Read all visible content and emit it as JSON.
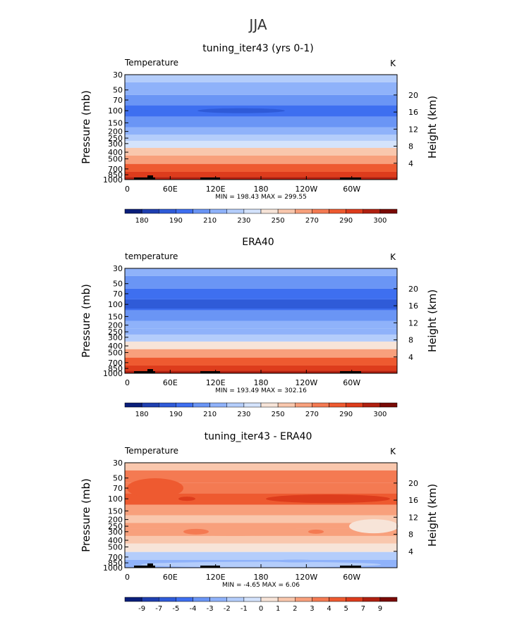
{
  "figure_title": "JJA",
  "chart_data": [
    {
      "type": "heatmap",
      "title": "tuning_iter43 (yrs 0-1)",
      "left_label": "Temperature",
      "units": "K",
      "ylabel": "Pressure (mb)",
      "ylabel_right": "Height (km)",
      "x_ticks": [
        "0",
        "60E",
        "120E",
        "180",
        "120W",
        "60W"
      ],
      "y_ticks": [
        "30",
        "50",
        "70",
        "100",
        "150",
        "200",
        "250",
        "300",
        "400",
        "500",
        "700",
        "850",
        "1000"
      ],
      "y_ticks_right": [
        "20",
        "16",
        "12",
        "8",
        "4"
      ],
      "stats": "MIN = 198.43   MAX = 299.55",
      "levels": [
        30,
        50,
        70,
        100,
        150,
        200,
        250,
        300,
        400,
        500,
        700,
        850,
        1000
      ],
      "values": [
        225,
        220,
        208,
        205,
        214,
        219,
        226,
        234,
        252,
        262,
        275,
        284,
        292
      ],
      "colorbar_labels": [
        "180",
        "190",
        "210",
        "230",
        "250",
        "270",
        "290",
        "300"
      ]
    },
    {
      "type": "heatmap",
      "title": "ERA40",
      "left_label": "temperature",
      "units": "K",
      "ylabel": "Pressure (mb)",
      "ylabel_right": "Height (km)",
      "x_ticks": [
        "0",
        "60E",
        "120E",
        "180",
        "120W",
        "60W"
      ],
      "y_ticks": [
        "30",
        "50",
        "70",
        "100",
        "150",
        "200",
        "250",
        "300",
        "400",
        "500",
        "700",
        "850",
        "1000"
      ],
      "y_ticks_right": [
        "20",
        "16",
        "12",
        "8",
        "4"
      ],
      "stats": "MIN = 193.49   MAX = 302.16",
      "levels": [
        30,
        50,
        70,
        100,
        150,
        200,
        250,
        300,
        400,
        500,
        700,
        850,
        1000
      ],
      "values": [
        222,
        214,
        207,
        200,
        210,
        217,
        222,
        230,
        248,
        260,
        274,
        285,
        294
      ],
      "colorbar_labels": [
        "180",
        "190",
        "210",
        "230",
        "250",
        "270",
        "290",
        "300"
      ]
    },
    {
      "type": "heatmap",
      "title": "tuning_iter43 - ERA40",
      "left_label": "Temperature",
      "units": "K",
      "ylabel": "Pressure (mb)",
      "ylabel_right": "Height (km)",
      "x_ticks": [
        "0",
        "60E",
        "120E",
        "180",
        "120W",
        "60W"
      ],
      "y_ticks": [
        "30",
        "50",
        "70",
        "100",
        "150",
        "200",
        "250",
        "300",
        "400",
        "500",
        "700",
        "850",
        "1000"
      ],
      "y_ticks_right": [
        "20",
        "16",
        "12",
        "8",
        "4"
      ],
      "stats": "MIN =  -4.65   MAX =   6.06",
      "levels": [
        30,
        50,
        70,
        100,
        150,
        200,
        250,
        300,
        400,
        500,
        700,
        850,
        1000
      ],
      "values": [
        2,
        4,
        4,
        5,
        3,
        2,
        3,
        3,
        2,
        1,
        -1,
        -2,
        -2
      ],
      "colorbar_labels": [
        "-9",
        "-7",
        "-5",
        "-4",
        "-3",
        "-2",
        "-1",
        "0",
        "1",
        "2",
        "3",
        "4",
        "5",
        "7",
        "9"
      ]
    }
  ],
  "colors": {
    "temp_scale": [
      "#0a1e7a",
      "#1f3fb0",
      "#2f5bd8",
      "#3e6ff0",
      "#6a95f5",
      "#8fb2fa",
      "#b4cdfb",
      "#d4e3fc",
      "#f7e4d8",
      "#f9c7ad",
      "#f8a07c",
      "#f47a52",
      "#ee5a30",
      "#dd3c1c",
      "#b02010",
      "#7a0a06"
    ],
    "diff_scale": [
      "#0a1e7a",
      "#1f3fb0",
      "#2f5bd8",
      "#3e6ff0",
      "#6a95f5",
      "#8fb2fa",
      "#b4cdfb",
      "#d4e3fc",
      "#f7e4d8",
      "#f9c7ad",
      "#f8a07c",
      "#f47a52",
      "#ee5a30",
      "#dd3c1c",
      "#b02010",
      "#7a0a06"
    ]
  }
}
